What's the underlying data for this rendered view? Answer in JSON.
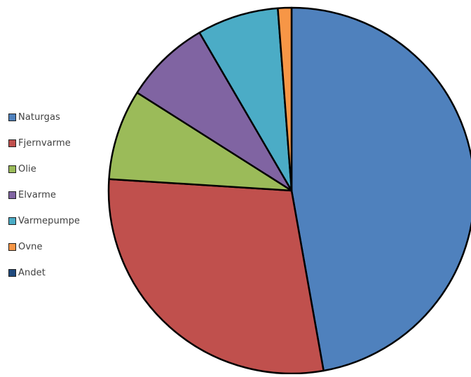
{
  "chart_data": {
    "type": "pie",
    "title": "",
    "legend_position": "left",
    "start_angle_deg": 0,
    "direction": "clockwise",
    "slices": [
      {
        "label": "Naturgas",
        "value": 47.2,
        "color": "#4F81BD"
      },
      {
        "label": "Fjernvarme",
        "value": 28.8,
        "color": "#C0504D"
      },
      {
        "label": "Olie",
        "value": 8.0,
        "color": "#9BBB59"
      },
      {
        "label": "Elvarme",
        "value": 7.6,
        "color": "#8064A2"
      },
      {
        "label": "Varmepumpe",
        "value": 7.2,
        "color": "#4BACC6"
      },
      {
        "label": "Ovne",
        "value": 1.2,
        "color": "#F79646"
      },
      {
        "label": "Andet",
        "value": 0.0,
        "color": "#1F497D"
      }
    ]
  }
}
